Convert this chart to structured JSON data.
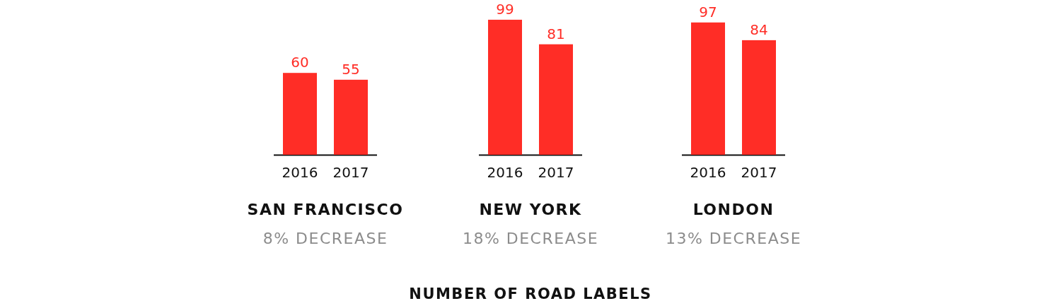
{
  "chart_data": [
    {
      "type": "bar",
      "categories": [
        "2016",
        "2017"
      ],
      "values": [
        60,
        55
      ],
      "color": "#ff2d26",
      "data_labels": true,
      "xlabel": "SAN FRANCISCO",
      "annotations": [
        "8% DECREASE"
      ]
    },
    {
      "type": "bar",
      "categories": [
        "2016",
        "2017"
      ],
      "values": [
        99,
        81
      ],
      "color": "#ff2d26",
      "data_labels": true,
      "xlabel": "NEW YORK",
      "annotations": [
        "18% DECREASE",
        "NUMBER OF ROAD LABELS"
      ]
    },
    {
      "type": "bar",
      "categories": [
        "2016",
        "2017"
      ],
      "values": [
        97,
        84
      ],
      "color": "#ff2d26",
      "data_labels": true,
      "xlabel": "LONDON",
      "annotations": [
        "13% DECREASE"
      ]
    }
  ]
}
